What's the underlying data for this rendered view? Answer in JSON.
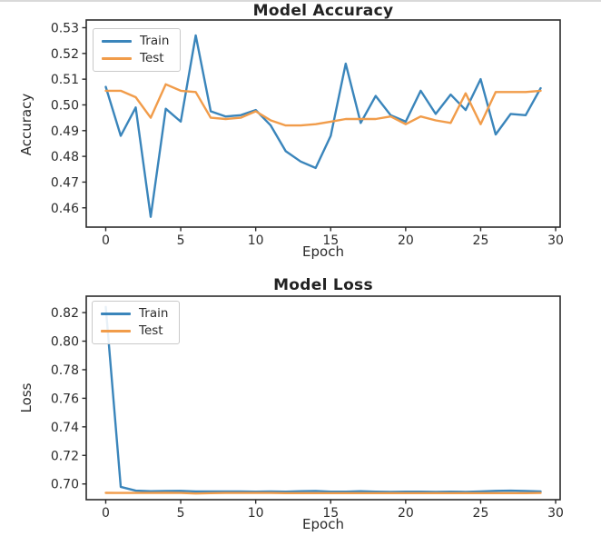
{
  "figure": {
    "background": "#ffffff"
  },
  "style": {
    "spine_color": "#2b2b2b",
    "tick_color": "#2b2b2b",
    "train_color": "#3a85bb",
    "test_color": "#f19c4a"
  },
  "chart_data": [
    {
      "type": "line",
      "title": "Model Accuracy",
      "xlabel": "Epoch",
      "ylabel": "Accuracy",
      "xlim": [
        -1.3,
        30.3
      ],
      "ylim": [
        0.4525,
        0.533
      ],
      "grid": false,
      "legend_position": "upper-left",
      "xticks": {
        "values": [
          0,
          5,
          10,
          15,
          20,
          25,
          30
        ],
        "labels": [
          "0",
          "5",
          "10",
          "15",
          "20",
          "25",
          "30"
        ]
      },
      "yticks": {
        "values": [
          0.53,
          0.52,
          0.51,
          0.5,
          0.49,
          0.48,
          0.47,
          0.46
        ],
        "labels": [
          "0.53",
          "0.52",
          "0.51",
          "0.50",
          "0.49",
          "0.48",
          "0.47",
          "0.46"
        ]
      },
      "x": [
        0,
        1,
        2,
        3,
        4,
        5,
        6,
        7,
        8,
        9,
        10,
        11,
        12,
        13,
        14,
        15,
        16,
        17,
        18,
        19,
        20,
        21,
        22,
        23,
        24,
        25,
        26,
        27,
        28,
        29
      ],
      "series": [
        {
          "name": "Train",
          "color": "#3a85bb",
          "values": [
            0.507,
            0.488,
            0.499,
            0.4565,
            0.4985,
            0.4935,
            0.527,
            0.4975,
            0.4955,
            0.496,
            0.498,
            0.492,
            0.482,
            0.478,
            0.4755,
            0.488,
            0.516,
            0.493,
            0.5035,
            0.496,
            0.4935,
            0.5055,
            0.4965,
            0.504,
            0.498,
            0.51,
            0.4885,
            0.4965,
            0.496,
            0.5065
          ]
        },
        {
          "name": "Test",
          "color": "#f19c4a",
          "values": [
            0.5055,
            0.5055,
            0.503,
            0.495,
            0.508,
            0.5055,
            0.505,
            0.495,
            0.4945,
            0.495,
            0.4975,
            0.494,
            0.492,
            0.492,
            0.4925,
            0.4935,
            0.4945,
            0.4945,
            0.4945,
            0.4955,
            0.4925,
            0.4955,
            0.494,
            0.493,
            0.5045,
            0.4925,
            0.505,
            0.505,
            0.505,
            0.5055
          ]
        }
      ]
    },
    {
      "type": "line",
      "title": "Model Loss",
      "xlabel": "Epoch",
      "ylabel": "Loss",
      "xlim": [
        -1.3,
        30.3
      ],
      "ylim": [
        0.689,
        0.8315
      ],
      "grid": false,
      "legend_position": "upper-left",
      "xticks": {
        "values": [
          0,
          5,
          10,
          15,
          20,
          25,
          30
        ],
        "labels": [
          "0",
          "5",
          "10",
          "15",
          "20",
          "25",
          "30"
        ]
      },
      "yticks": {
        "values": [
          0.82,
          0.8,
          0.78,
          0.76,
          0.74,
          0.72,
          0.7
        ],
        "labels": [
          "0.82",
          "0.80",
          "0.78",
          "0.76",
          "0.74",
          "0.72",
          "0.70"
        ]
      },
      "x": [
        0,
        1,
        2,
        3,
        4,
        5,
        6,
        7,
        8,
        9,
        10,
        11,
        12,
        13,
        14,
        15,
        16,
        17,
        18,
        19,
        20,
        21,
        22,
        23,
        24,
        25,
        26,
        27,
        28,
        29
      ],
      "series": [
        {
          "name": "Train",
          "color": "#3a85bb",
          "values": [
            0.824,
            0.698,
            0.6953,
            0.6949,
            0.6951,
            0.6952,
            0.6948,
            0.6947,
            0.6947,
            0.6947,
            0.6946,
            0.6947,
            0.6946,
            0.6949,
            0.6951,
            0.6946,
            0.6946,
            0.6949,
            0.6946,
            0.6945,
            0.6946,
            0.6946,
            0.6945,
            0.6946,
            0.6945,
            0.6947,
            0.6952,
            0.6953,
            0.6951,
            0.6947
          ]
        },
        {
          "name": "Test",
          "color": "#f19c4a",
          "values": [
            0.6938,
            0.6937,
            0.6937,
            0.6937,
            0.6938,
            0.6937,
            0.6933,
            0.6936,
            0.6937,
            0.6937,
            0.6937,
            0.6937,
            0.6936,
            0.6936,
            0.6936,
            0.6936,
            0.6936,
            0.6936,
            0.6936,
            0.6936,
            0.6936,
            0.6936,
            0.6936,
            0.6936,
            0.6936,
            0.6936,
            0.6936,
            0.6936,
            0.6936,
            0.6937
          ]
        }
      ]
    }
  ]
}
